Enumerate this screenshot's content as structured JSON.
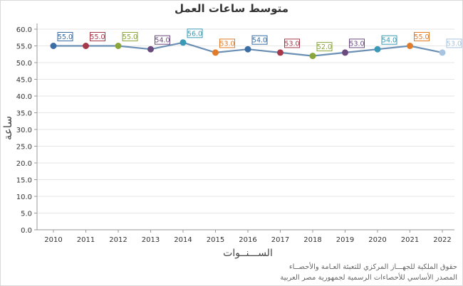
{
  "chart_data": {
    "type": "line",
    "title": "متوسط ساعات العمل",
    "xlabel": "الســـنــوات",
    "ylabel": "ساعة",
    "x": [
      "2010",
      "2011",
      "2012",
      "2013",
      "2014",
      "2015",
      "2016",
      "2017",
      "2018",
      "2019",
      "2020",
      "2021",
      "2022"
    ],
    "series": [
      {
        "values": [
          55.0,
          55.0,
          55.0,
          54.0,
          56.0,
          53.0,
          54.0,
          53.0,
          52.0,
          53.0,
          54.0,
          55.0,
          53.0
        ]
      }
    ],
    "data_labels": [
      "55.0",
      "55.0",
      "55.0",
      "54.0",
      "56.0",
      "53.0",
      "54.0",
      "53.0",
      "52.0",
      "53.0",
      "54.0",
      "55.0",
      "53.0"
    ],
    "y_ticks": [
      "0.0",
      "5.0",
      "10.0",
      "15.0",
      "20.0",
      "25.0",
      "30.0",
      "35.0",
      "40.0",
      "45.0",
      "50.0",
      "55.0",
      "60.0"
    ],
    "ylim": [
      0,
      60
    ],
    "grid": true,
    "line_color": "#6b8fb5",
    "point_colors": [
      "#3a6ea5",
      "#a5394a",
      "#8aa63a",
      "#6b4a7e",
      "#3a9ab5",
      "#e07b2a",
      "#3a6ea5",
      "#a5394a",
      "#8aa63a",
      "#6b4a7e",
      "#3a9ab5",
      "#e07b2a",
      "#a9c4e0"
    ]
  },
  "credits": {
    "line1": "حقوق الملكية للجهـــاز المركزي للتعبئة العـامة والأحصــاء",
    "line2": "المصدر الأساسي للأحصاءات الرسمية لجمهورية مصر العربية"
  }
}
